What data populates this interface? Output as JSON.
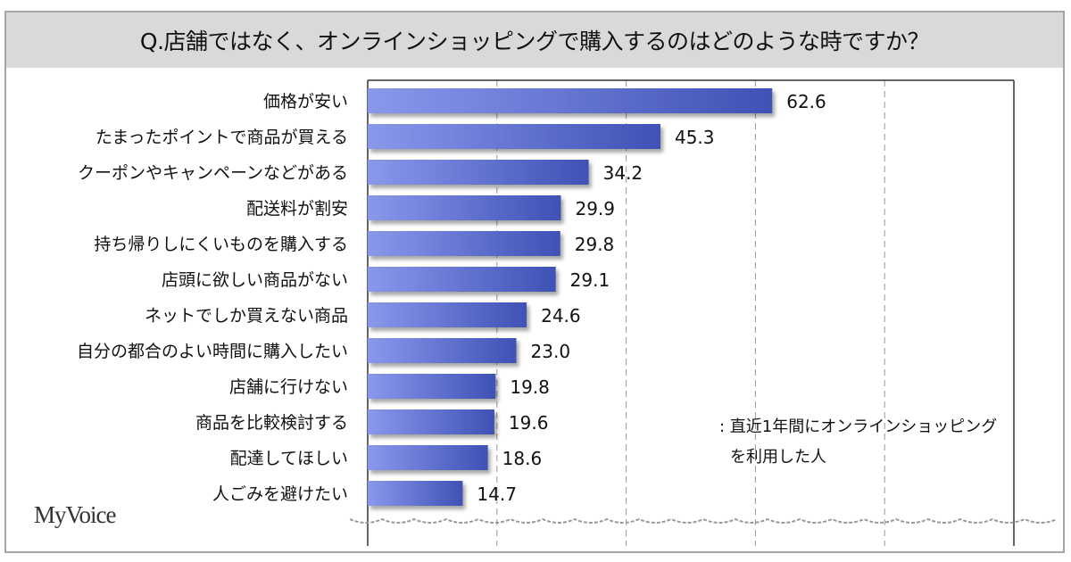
{
  "chart_data": {
    "type": "bar",
    "orientation": "horizontal",
    "title": "Q.店舗ではなく、オンラインショッピングで購入するのはどのような時ですか？",
    "categories": [
      "価格が安い",
      "たまったポイントで商品が買える",
      "クーポンやキャンペーンなどがある",
      "配送料が割安",
      "持ち帰りしにくいものを購入する",
      "店頭に欲しい商品がない",
      "ネットでしか買えない商品",
      "自分の都合のよい時間に購入したい",
      "店舗に行けない",
      "商品を比較検討する",
      "配達してほしい",
      "人ごみを避けたい"
    ],
    "values": [
      62.6,
      45.3,
      34.2,
      29.9,
      29.8,
      29.1,
      24.6,
      23.0,
      19.8,
      19.6,
      18.6,
      14.7
    ],
    "xlim": [
      0,
      100
    ],
    "grid_step": 20,
    "grid": true,
    "legend_note": [
      ": 直近1年間にオンラインショッピング",
      "を利用した人"
    ],
    "bar_color_start": "#8a98ec",
    "bar_color_end": "#3f51b5"
  },
  "brand": "MyVoice"
}
